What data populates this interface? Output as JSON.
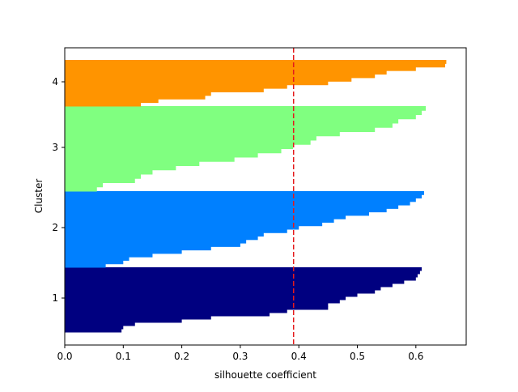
{
  "chart_data": {
    "type": "silhouette",
    "x_label": "silhouette coefficient",
    "y_label": "Cluster",
    "xlim": [
      0,
      0.686
    ],
    "ylim": [
      0,
      367
    ],
    "xticks": [
      {
        "value": 0,
        "label": "0.0"
      },
      0.1,
      0.2,
      0.3,
      0.4,
      0.5,
      0.6
    ],
    "yticks": [
      {
        "value": 58,
        "label": "1"
      },
      {
        "value": 145,
        "label": "2"
      },
      {
        "value": 244,
        "label": "3"
      },
      {
        "value": 325,
        "label": "4"
      }
    ],
    "average_line": {
      "value": 0.391,
      "color": "#e41a1c"
    },
    "series": [
      {
        "color": "#000080",
        "y_range": [
          16,
          96
        ],
        "values": [
          0.097,
          0.1,
          0.12,
          0.2,
          0.25,
          0.35,
          0.38,
          0.45,
          0.45,
          0.47,
          0.48,
          0.5,
          0.53,
          0.54,
          0.56,
          0.58,
          0.6,
          0.603,
          0.607,
          0.61
        ]
      },
      {
        "color": "#0080ff",
        "y_range": [
          96,
          190
        ],
        "values": [
          0.07,
          0.1,
          0.11,
          0.15,
          0.2,
          0.25,
          0.3,
          0.31,
          0.33,
          0.34,
          0.38,
          0.4,
          0.44,
          0.46,
          0.48,
          0.52,
          0.55,
          0.57,
          0.59,
          0.6,
          0.61,
          0.614
        ]
      },
      {
        "color": "#80ff80",
        "y_range": [
          190,
          295
        ],
        "values": [
          0.055,
          0.065,
          0.12,
          0.13,
          0.15,
          0.19,
          0.23,
          0.29,
          0.33,
          0.37,
          0.39,
          0.42,
          0.43,
          0.47,
          0.53,
          0.56,
          0.57,
          0.6,
          0.61,
          0.617
        ]
      },
      {
        "color": "#ff9400",
        "y_range": [
          295,
          352
        ],
        "values": [
          0.13,
          0.16,
          0.24,
          0.25,
          0.34,
          0.38,
          0.45,
          0.49,
          0.53,
          0.55,
          0.6,
          0.65,
          0.652
        ]
      }
    ]
  }
}
